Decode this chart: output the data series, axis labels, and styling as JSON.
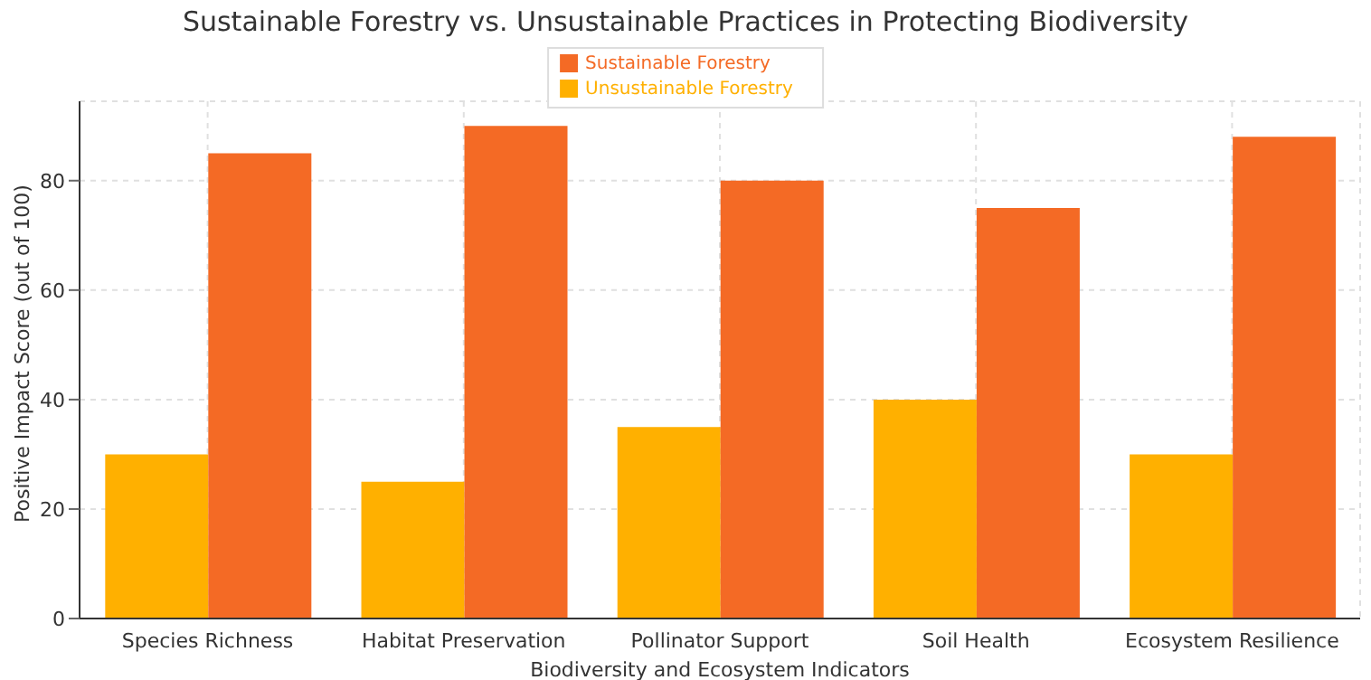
{
  "chart_data": {
    "type": "bar",
    "title": "Sustainable Forestry vs. Unsustainable Practices in Protecting Biodiversity",
    "xlabel": "Biodiversity and Ecosystem Indicators",
    "ylabel": "Positive Impact Score (out of 100)",
    "categories": [
      "Species Richness",
      "Habitat Preservation",
      "Pollinator Support",
      "Soil Health",
      "Ecosystem Resilience"
    ],
    "series": [
      {
        "name": "Unsustainable Forestry",
        "color": "#ffb000",
        "values": [
          30,
          25,
          35,
          40,
          30
        ]
      },
      {
        "name": "Sustainable Forestry",
        "color": "#f46a25",
        "values": [
          85,
          90,
          80,
          75,
          88
        ]
      }
    ],
    "ylim": [
      0,
      94.5
    ],
    "yticks": [
      0,
      20,
      40,
      60,
      80
    ],
    "grid": true,
    "legend": "top"
  }
}
